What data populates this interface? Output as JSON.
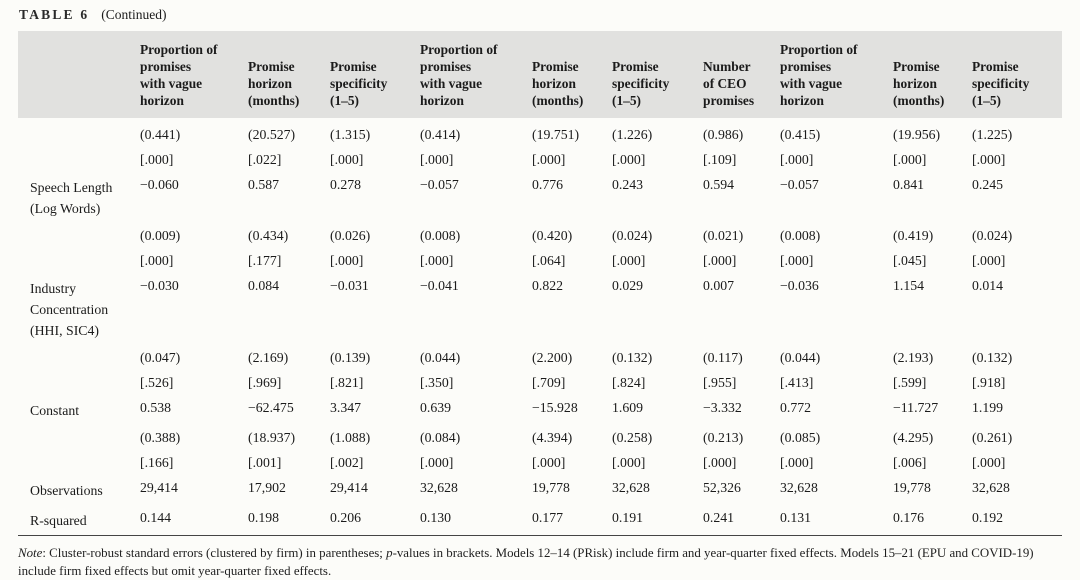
{
  "title": {
    "label": "TABLE 6",
    "continued": "(Continued)"
  },
  "table": {
    "headers": [
      "",
      "Proportion of\npromises\nwith vague\nhorizon",
      "Promise\nhorizon\n(months)",
      "Promise\nspecificity\n(1–5)",
      "Proportion of\npromises\nwith vague\nhorizon",
      "Promise\nhorizon\n(months)",
      "Promise\nspecificity\n(1–5)",
      "Number\nof CEO\npromises",
      "Proportion of\npromises\nwith vague\nhorizon",
      "Promise\nhorizon\n(months)",
      "Promise\nspecificity\n(1–5)"
    ],
    "rows": [
      {
        "label": "",
        "values": [
          "(0.441)",
          "(20.527)",
          "(1.315)",
          "(0.414)",
          "(19.751)",
          "(1.226)",
          "(0.986)",
          "(0.415)",
          "(19.956)",
          "(1.225)"
        ]
      },
      {
        "label": "",
        "values": [
          "[.000]",
          "[.022]",
          "[.000]",
          "[.000]",
          "[.000]",
          "[.000]",
          "[.109]",
          "[.000]",
          "[.000]",
          "[.000]"
        ]
      },
      {
        "label": "Speech Length\n(Log Words)",
        "values": [
          "−0.060",
          "0.587",
          "0.278",
          "−0.057",
          "0.776",
          "0.243",
          "0.594",
          "−0.057",
          "0.841",
          "0.245"
        ]
      },
      {
        "label": "",
        "values": [
          "(0.009)",
          "(0.434)",
          "(0.026)",
          "(0.008)",
          "(0.420)",
          "(0.024)",
          "(0.021)",
          "(0.008)",
          "(0.419)",
          "(0.024)"
        ]
      },
      {
        "label": "",
        "values": [
          "[.000]",
          "[.177]",
          "[.000]",
          "[.000]",
          "[.064]",
          "[.000]",
          "[.000]",
          "[.000]",
          "[.045]",
          "[.000]"
        ]
      },
      {
        "label": "Industry\nConcentration\n(HHI, SIC4)",
        "values": [
          "−0.030",
          "0.084",
          "−0.031",
          "−0.041",
          "0.822",
          "0.029",
          "0.007",
          "−0.036",
          "1.154",
          "0.014"
        ]
      },
      {
        "label": "",
        "values": [
          "(0.047)",
          "(2.169)",
          "(0.139)",
          "(0.044)",
          "(2.200)",
          "(0.132)",
          "(0.117)",
          "(0.044)",
          "(2.193)",
          "(0.132)"
        ]
      },
      {
        "label": "",
        "values": [
          "[.526]",
          "[.969]",
          "[.821]",
          "[.350]",
          "[.709]",
          "[.824]",
          "[.955]",
          "[.413]",
          "[.599]",
          "[.918]"
        ]
      },
      {
        "label": "Constant",
        "values": [
          "0.538",
          "−62.475",
          "3.347",
          "0.639",
          "−15.928",
          "1.609",
          "−3.332",
          "0.772",
          "−11.727",
          "1.199"
        ]
      },
      {
        "label": "",
        "values": [
          "(0.388)",
          "(18.937)",
          "(1.088)",
          "(0.084)",
          "(4.394)",
          "(0.258)",
          "(0.213)",
          "(0.085)",
          "(4.295)",
          "(0.261)"
        ]
      },
      {
        "label": "",
        "values": [
          "[.166]",
          "[.001]",
          "[.002]",
          "[.000]",
          "[.000]",
          "[.000]",
          "[.000]",
          "[.000]",
          "[.006]",
          "[.000]"
        ]
      },
      {
        "label": "Observations",
        "values": [
          "29,414",
          "17,902",
          "29,414",
          "32,628",
          "19,778",
          "32,628",
          "52,326",
          "32,628",
          "19,778",
          "32,628"
        ]
      },
      {
        "label": "R-squared",
        "values": [
          "0.144",
          "0.198",
          "0.206",
          "0.130",
          "0.177",
          "0.191",
          "0.241",
          "0.131",
          "0.176",
          "0.192"
        ]
      }
    ]
  },
  "footnote": {
    "note_label": "Note",
    "part1": ": Cluster-robust standard errors (clustered by firm) in parentheses; ",
    "p_italic": "p",
    "part2": "-values in brackets. Models 12–14 (PRisk) include firm and year-quarter fixed effects. Models 15–21 (EPU and COVID-19) include firm fixed effects but omit year-quarter fixed effects."
  },
  "colors": {
    "header_bg": "#e1e1df",
    "page_bg": "#fcfcf9",
    "rule": "#454545"
  }
}
